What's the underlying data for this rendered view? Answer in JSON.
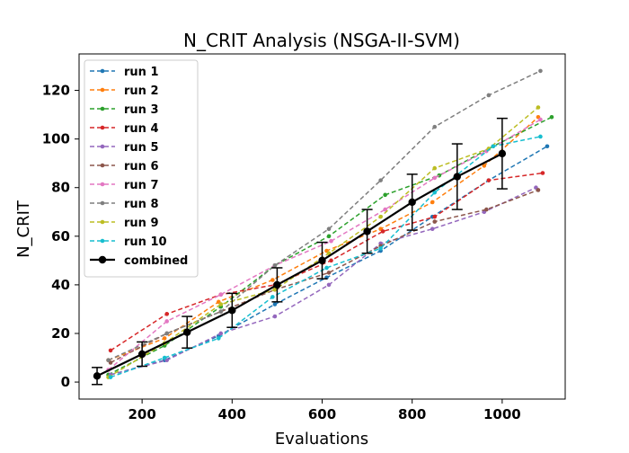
{
  "chart_data": {
    "type": "line",
    "title": "N_CRIT Analysis (NSGA-II-SVM)",
    "xlabel": "Evaluations",
    "ylabel": "N_CRIT",
    "xlim": [
      60,
      1140
    ],
    "ylim": [
      -7,
      135
    ],
    "xticks": [
      200,
      400,
      600,
      800,
      1000
    ],
    "yticks": [
      0,
      20,
      40,
      60,
      80,
      100,
      120
    ],
    "grid": false,
    "legend_position": "top-left",
    "series": [
      {
        "name": "run 1",
        "color": "#1f77b4",
        "style": "dashed",
        "marker": "circle",
        "points": [
          [
            130,
            3
          ],
          [
            250,
            9
          ],
          [
            370,
            19
          ],
          [
            495,
            32
          ],
          [
            610,
            43
          ],
          [
            730,
            54
          ],
          [
            845,
            68
          ],
          [
            970,
            83
          ],
          [
            1100,
            97
          ]
        ]
      },
      {
        "name": "run 2",
        "color": "#ff7f0e",
        "style": "dashed",
        "marker": "circle",
        "points": [
          [
            125,
            9
          ],
          [
            250,
            18
          ],
          [
            370,
            33
          ],
          [
            490,
            42
          ],
          [
            610,
            54
          ],
          [
            730,
            63
          ],
          [
            845,
            74
          ],
          [
            960,
            89
          ],
          [
            1080,
            109
          ]
        ]
      },
      {
        "name": "run 3",
        "color": "#2ca02c",
        "style": "dashed",
        "marker": "circle",
        "points": [
          [
            125,
            3
          ],
          [
            250,
            15
          ],
          [
            375,
            31
          ],
          [
            495,
            48
          ],
          [
            615,
            60
          ],
          [
            740,
            77
          ],
          [
            860,
            85
          ],
          [
            980,
            97
          ],
          [
            1110,
            109
          ]
        ]
      },
      {
        "name": "run 4",
        "color": "#d62728",
        "style": "dashed",
        "marker": "circle",
        "points": [
          [
            130,
            13
          ],
          [
            255,
            28
          ],
          [
            375,
            36
          ],
          [
            495,
            40
          ],
          [
            620,
            50
          ],
          [
            735,
            62
          ],
          [
            850,
            68
          ],
          [
            970,
            83
          ],
          [
            1090,
            86
          ]
        ]
      },
      {
        "name": "run 5",
        "color": "#9467bd",
        "style": "dashed",
        "marker": "circle",
        "points": [
          [
            130,
            3
          ],
          [
            255,
            9
          ],
          [
            375,
            20
          ],
          [
            495,
            27
          ],
          [
            615,
            40
          ],
          [
            730,
            57
          ],
          [
            845,
            63
          ],
          [
            960,
            70
          ],
          [
            1075,
            80
          ]
        ]
      },
      {
        "name": "run 6",
        "color": "#8c564b",
        "style": "dashed",
        "marker": "circle",
        "points": [
          [
            130,
            8
          ],
          [
            255,
            20
          ],
          [
            375,
            29
          ],
          [
            495,
            38
          ],
          [
            615,
            45
          ],
          [
            730,
            56
          ],
          [
            850,
            66
          ],
          [
            965,
            71
          ],
          [
            1080,
            79
          ]
        ]
      },
      {
        "name": "run 7",
        "color": "#e377c2",
        "style": "dashed",
        "marker": "circle",
        "points": [
          [
            125,
            5
          ],
          [
            255,
            25
          ],
          [
            375,
            36
          ],
          [
            495,
            48
          ],
          [
            620,
            58
          ],
          [
            740,
            71
          ],
          [
            850,
            84
          ],
          [
            965,
            95
          ],
          [
            1085,
            108
          ]
        ]
      },
      {
        "name": "run 8",
        "color": "#7f7f7f",
        "style": "dashed",
        "marker": "circle",
        "points": [
          [
            125,
            9
          ],
          [
            255,
            20
          ],
          [
            375,
            29
          ],
          [
            495,
            48
          ],
          [
            615,
            63
          ],
          [
            730,
            83
          ],
          [
            850,
            105
          ],
          [
            970,
            118
          ],
          [
            1085,
            128
          ]
        ]
      },
      {
        "name": "run 9",
        "color": "#bcbd22",
        "style": "dashed",
        "marker": "circle",
        "points": [
          [
            125,
            2
          ],
          [
            250,
            16
          ],
          [
            375,
            32
          ],
          [
            495,
            38
          ],
          [
            615,
            53
          ],
          [
            730,
            68
          ],
          [
            850,
            88
          ],
          [
            970,
            96
          ],
          [
            1080,
            113
          ]
        ]
      },
      {
        "name": "run 10",
        "color": "#17becf",
        "style": "dashed",
        "marker": "circle",
        "points": [
          [
            130,
            2
          ],
          [
            250,
            10
          ],
          [
            370,
            18
          ],
          [
            490,
            35
          ],
          [
            610,
            47
          ],
          [
            730,
            55
          ],
          [
            850,
            78
          ],
          [
            980,
            97
          ],
          [
            1085,
            101
          ]
        ]
      },
      {
        "name": "combined",
        "color": "#000000",
        "style": "solid",
        "marker": "circle",
        "points": [
          [
            100,
            2.5
          ],
          [
            200,
            11.5
          ],
          [
            300,
            20.5
          ],
          [
            400,
            29.5
          ],
          [
            500,
            40
          ],
          [
            600,
            50
          ],
          [
            700,
            62
          ],
          [
            800,
            74
          ],
          [
            900,
            84.5
          ],
          [
            1000,
            94
          ]
        ],
        "error": [
          3.5,
          5,
          6.5,
          7,
          7,
          7.5,
          9,
          11.5,
          13.5,
          14.5
        ]
      }
    ]
  }
}
